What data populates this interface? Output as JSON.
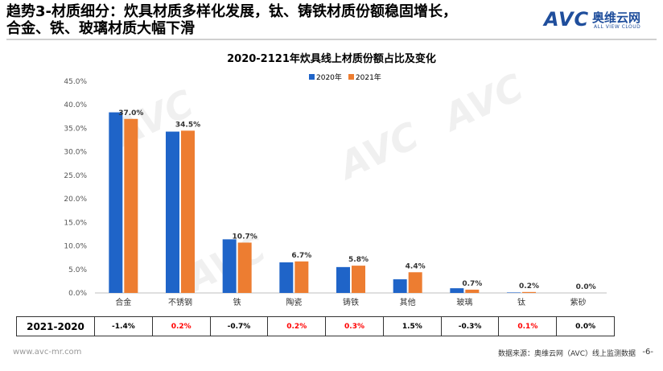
{
  "header": {
    "title_line1": "趋势3-材质细分：炊具材质多样化发展，钛、铸铁材质份额稳固增长，",
    "title_line2": "合金、铁、玻璃材质大幅下滑",
    "logo_mark": "AVC",
    "logo_cn": "奥维云网",
    "logo_en": "ALL VIEW CLOUD"
  },
  "watermark_text": "AVC",
  "colors": {
    "series_2020": "#1f64c8",
    "series_2021": "#ed7d31",
    "positive_diff": "#ff0000",
    "negative_diff": "#000000"
  },
  "chart_data": {
    "type": "bar",
    "title": "2020-2121年炊具线上材质份额占比及变化",
    "categories": [
      "合金",
      "不锈钢",
      "铁",
      "陶瓷",
      "铸铁",
      "其他",
      "玻璃",
      "钛",
      "紫砂"
    ],
    "series": [
      {
        "name": "2020年",
        "values": [
          38.4,
          34.3,
          11.4,
          6.5,
          5.5,
          2.9,
          1.0,
          0.1,
          0.0
        ]
      },
      {
        "name": "2021年",
        "values": [
          37.0,
          34.5,
          10.7,
          6.7,
          5.8,
          4.4,
          0.7,
          0.2,
          0.0
        ]
      }
    ],
    "data_labels_2021": [
      "37.0%",
      "34.5%",
      "10.7%",
      "6.7%",
      "5.8%",
      "4.4%",
      "0.7%",
      "0.2%",
      "0.0%"
    ],
    "ylim": [
      0,
      45
    ],
    "yticks": [
      "0.0%",
      "5.0%",
      "10.0%",
      "15.0%",
      "20.0%",
      "25.0%",
      "30.0%",
      "35.0%",
      "40.0%",
      "45.0%"
    ],
    "legend_position": "top-center",
    "grid": false
  },
  "diff_table": {
    "label": "2021-2020",
    "values": [
      "-1.4%",
      "0.2%",
      "-0.7%",
      "0.2%",
      "0.3%",
      "1.5%",
      "-0.3%",
      "0.1%",
      "0.0%"
    ],
    "highlight": [
      false,
      true,
      false,
      true,
      true,
      false,
      false,
      true,
      false
    ]
  },
  "footer": {
    "website": "www.avc-mr.com",
    "source": "数据来源：奥维云网（AVC）线上监测数据",
    "page": "-6-"
  }
}
